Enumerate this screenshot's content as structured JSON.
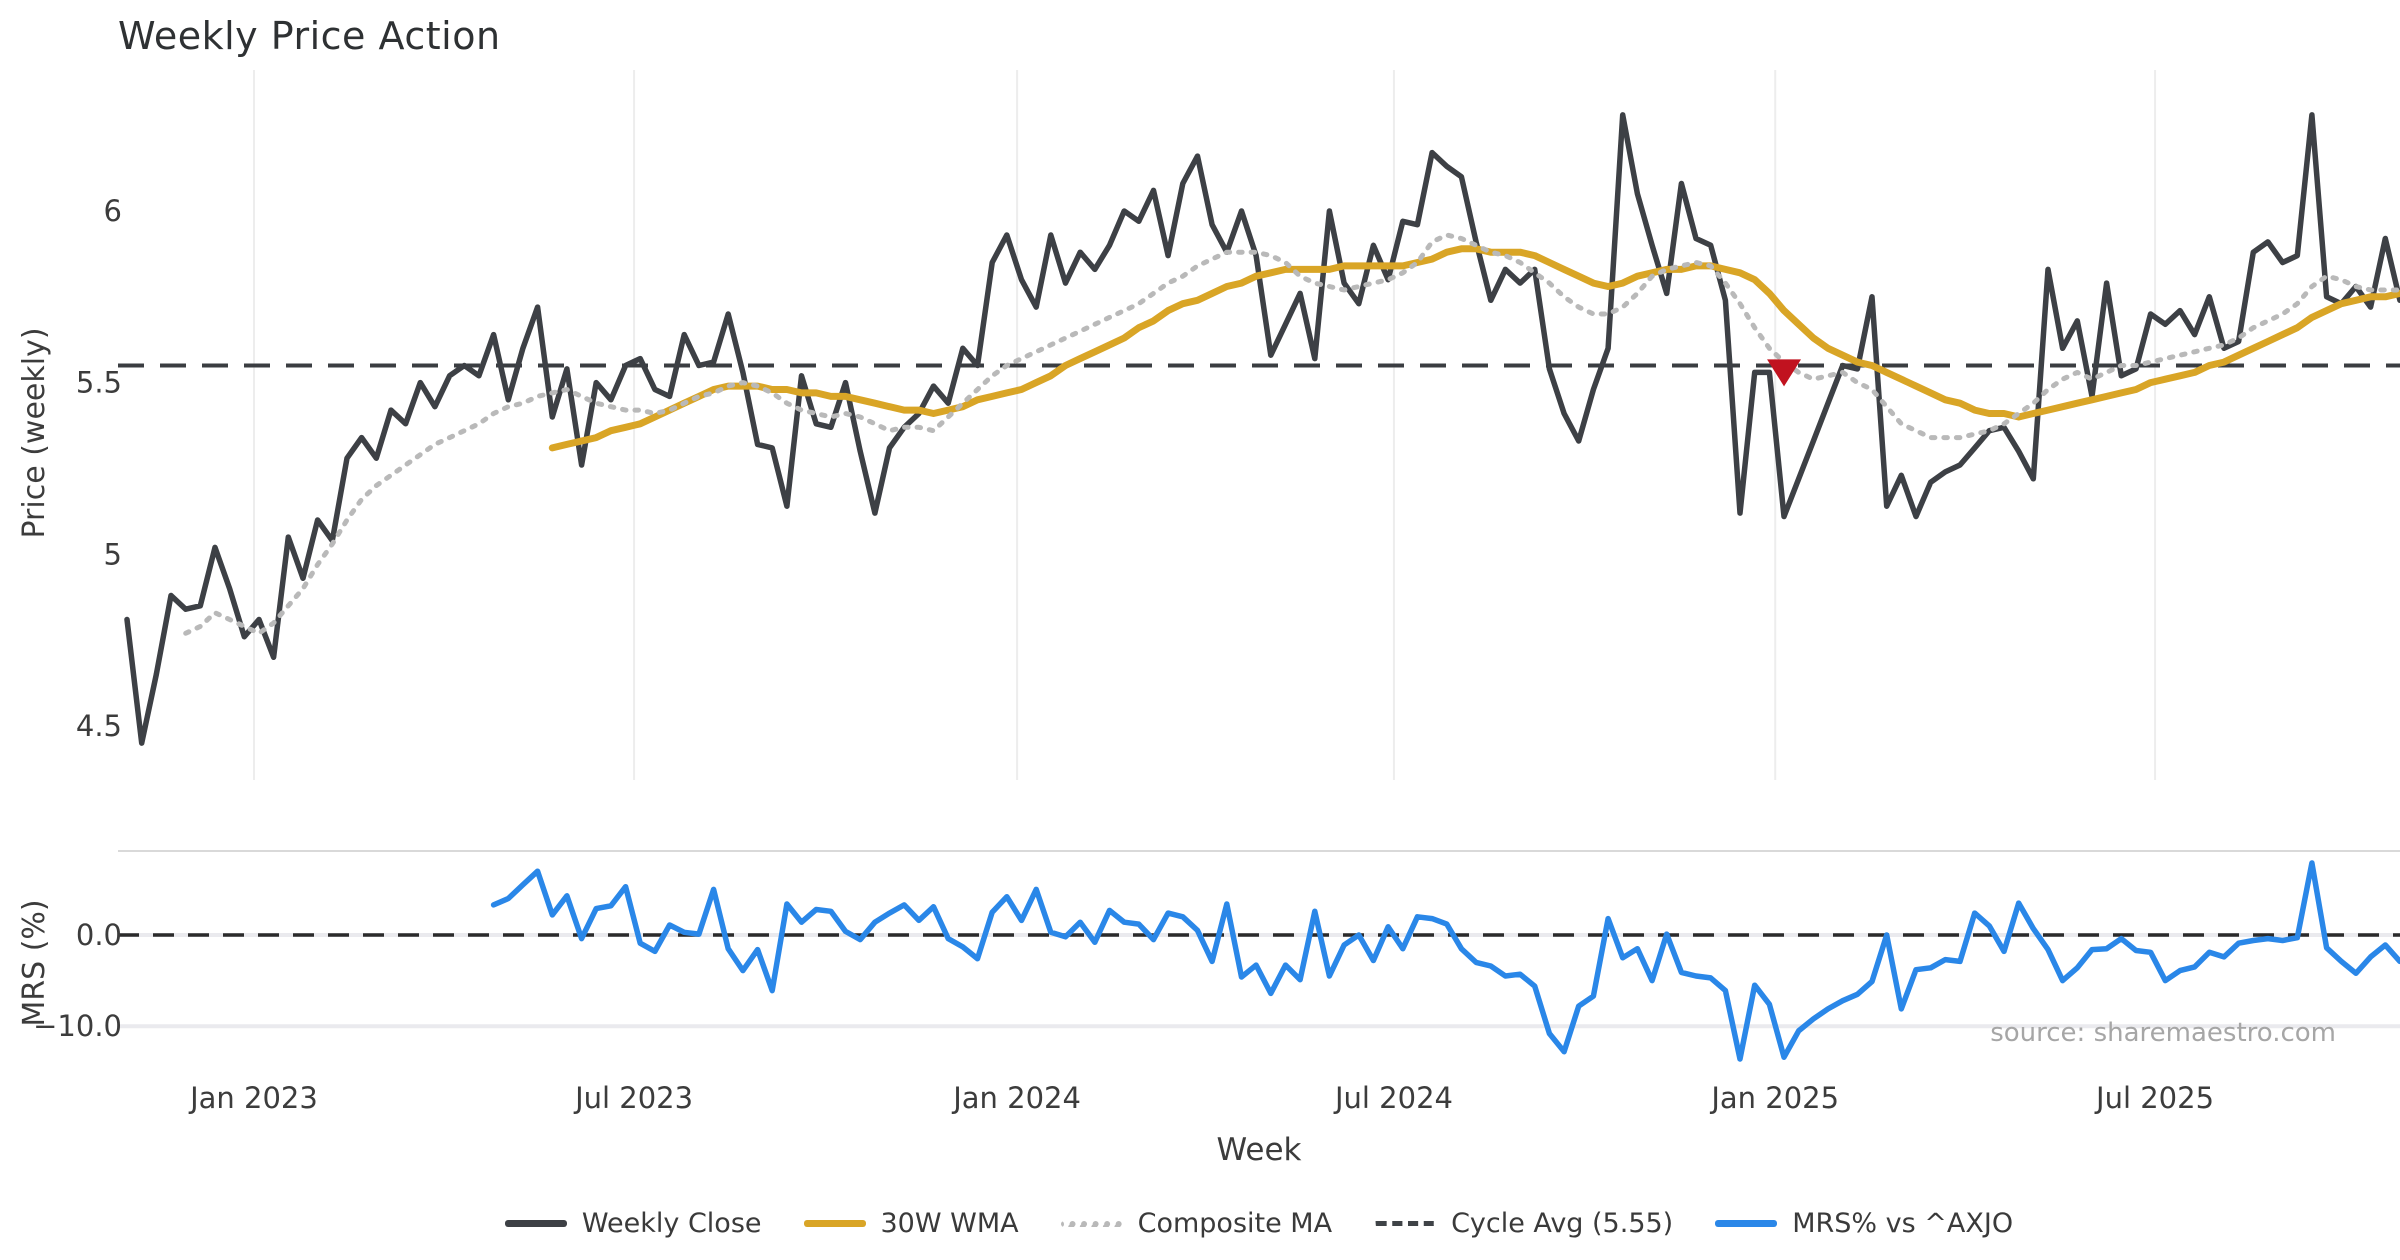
{
  "title": "Weekly Price Action",
  "source_text": "source: sharemaestro.com",
  "legend": {
    "items": [
      {
        "label": "Weekly Close",
        "color": "#3d4045",
        "style": "solid"
      },
      {
        "label": "30W WMA",
        "color": "#d9a526",
        "style": "solid"
      },
      {
        "label": "Composite MA",
        "color": "#b9b9b9",
        "style": "dotted"
      },
      {
        "label": "Cycle Avg (5.55)",
        "color": "#3f4347",
        "style": "dashed"
      },
      {
        "label": "MRS% vs ^AXJO",
        "color": "#2a87e8",
        "style": "solid"
      }
    ]
  },
  "chart_data": {
    "type": "line",
    "title": "Weekly Price Action",
    "xlabel": "Week",
    "grid": "vertical-main-panel-only",
    "legend_position": "bottom-center",
    "x_ticks": [
      {
        "label": "Jan 2023",
        "week": 8.66
      },
      {
        "label": "Jul 2023",
        "week": 34.58
      },
      {
        "label": "Jan 2024",
        "week": 60.7
      },
      {
        "label": "Jul 2024",
        "week": 86.4
      },
      {
        "label": "Jan 2025",
        "week": 112.4
      },
      {
        "label": "Jul 2025",
        "week": 138.3
      }
    ],
    "panels": [
      {
        "name": "price",
        "ylabel": "Price (weekly)",
        "ylim": [
          4.35,
          6.41
        ],
        "yticks": [
          {
            "label": "4.5",
            "value": 4.5
          },
          {
            "label": "5",
            "value": 5
          },
          {
            "label": "5.5",
            "value": 5.5
          },
          {
            "label": "6",
            "value": 6
          }
        ],
        "cycle_avg_line": {
          "value": 5.55,
          "color": "#3a3d41",
          "style": "dashed"
        }
      },
      {
        "name": "mrs",
        "ylabel": "MRS (%)",
        "ylim": [
          -14.5,
          9.2
        ],
        "yticks": [
          {
            "label": "0.0",
            "value": 0
          },
          {
            "label": "−10.0",
            "value": -10
          }
        ],
        "zero_line": {
          "value": 0,
          "color": "#2b2b2b",
          "style": "dashed"
        },
        "light_gridlines": [
          0,
          -10
        ]
      }
    ],
    "marker": {
      "shape": "triangle-down",
      "week": 113,
      "price": 5.53,
      "color": "#c1121f",
      "meaning": "signal marker below cycle avg"
    },
    "series": [
      {
        "name": "Weekly Close",
        "panel": 0,
        "color": "#3d4045",
        "style": "solid",
        "width": 5.5,
        "start_week": 0,
        "values": [
          4.81,
          4.45,
          4.65,
          4.88,
          4.84,
          4.85,
          5.02,
          4.9,
          4.76,
          4.81,
          4.7,
          5.05,
          4.93,
          5.1,
          5.04,
          5.28,
          5.34,
          5.28,
          5.42,
          5.38,
          5.5,
          5.43,
          5.52,
          5.55,
          5.52,
          5.64,
          5.45,
          5.6,
          5.72,
          5.4,
          5.54,
          5.26,
          5.5,
          5.45,
          5.55,
          5.57,
          5.48,
          5.46,
          5.64,
          5.55,
          5.56,
          5.7,
          5.53,
          5.32,
          5.31,
          5.14,
          5.52,
          5.38,
          5.37,
          5.5,
          5.3,
          5.12,
          5.31,
          5.37,
          5.41,
          5.49,
          5.44,
          5.6,
          5.55,
          5.85,
          5.93,
          5.8,
          5.72,
          5.93,
          5.79,
          5.88,
          5.83,
          5.9,
          6.0,
          5.97,
          6.06,
          5.87,
          6.08,
          6.16,
          5.96,
          5.88,
          6.0,
          5.87,
          5.58,
          5.67,
          5.76,
          5.57,
          6.0,
          5.79,
          5.73,
          5.9,
          5.8,
          5.97,
          5.96,
          6.17,
          6.13,
          6.1,
          5.91,
          5.74,
          5.83,
          5.79,
          5.83,
          5.54,
          5.41,
          5.33,
          5.48,
          5.6,
          6.28,
          6.05,
          5.9,
          5.76,
          6.08,
          5.92,
          5.9,
          5.74,
          5.12,
          5.53,
          5.53,
          5.11,
          5.22,
          5.33,
          5.44,
          5.55,
          5.54,
          5.75,
          5.14,
          5.23,
          5.11,
          5.21,
          5.24,
          5.26,
          5.31,
          5.36,
          5.37,
          5.3,
          5.22,
          5.83,
          5.6,
          5.68,
          5.46,
          5.79,
          5.52,
          5.54,
          5.7,
          5.67,
          5.71,
          5.64,
          5.75,
          5.6,
          5.62,
          5.88,
          5.91,
          5.85,
          5.87,
          6.28,
          5.75,
          5.73,
          5.78,
          5.72,
          5.92,
          5.74
        ]
      },
      {
        "name": "30W WMA",
        "panel": 0,
        "color": "#d9a526",
        "style": "solid",
        "width": 7,
        "start_week": 29,
        "values": [
          5.31,
          5.32,
          5.33,
          5.34,
          5.36,
          5.37,
          5.38,
          5.4,
          5.42,
          5.44,
          5.46,
          5.48,
          5.49,
          5.49,
          5.49,
          5.48,
          5.48,
          5.47,
          5.47,
          5.46,
          5.46,
          5.45,
          5.44,
          5.43,
          5.42,
          5.42,
          5.41,
          5.42,
          5.43,
          5.45,
          5.46,
          5.47,
          5.48,
          5.5,
          5.52,
          5.55,
          5.57,
          5.59,
          5.61,
          5.63,
          5.66,
          5.68,
          5.71,
          5.73,
          5.74,
          5.76,
          5.78,
          5.79,
          5.81,
          5.82,
          5.83,
          5.83,
          5.83,
          5.83,
          5.84,
          5.84,
          5.84,
          5.84,
          5.84,
          5.85,
          5.86,
          5.88,
          5.89,
          5.89,
          5.88,
          5.88,
          5.88,
          5.87,
          5.85,
          5.83,
          5.81,
          5.79,
          5.78,
          5.79,
          5.81,
          5.82,
          5.83,
          5.83,
          5.84,
          5.84,
          5.83,
          5.82,
          5.8,
          5.76,
          5.71,
          5.67,
          5.63,
          5.6,
          5.58,
          5.56,
          5.55,
          5.53,
          5.51,
          5.49,
          5.47,
          5.45,
          5.44,
          5.42,
          5.41,
          5.41,
          5.4,
          5.41,
          5.42,
          5.43,
          5.44,
          5.45,
          5.46,
          5.47,
          5.48,
          5.5,
          5.51,
          5.52,
          5.53,
          5.55,
          5.56,
          5.58,
          5.6,
          5.62,
          5.64,
          5.66,
          5.69,
          5.71,
          5.73,
          5.74,
          5.75,
          5.75,
          5.76
        ]
      },
      {
        "name": "Composite MA",
        "panel": 0,
        "color": "#b9b9b9",
        "style": "dotted",
        "width": 5,
        "start_week": 4,
        "values": [
          4.77,
          4.79,
          4.83,
          4.81,
          4.79,
          4.77,
          4.8,
          4.85,
          4.9,
          4.97,
          5.03,
          5.1,
          5.16,
          5.2,
          5.23,
          5.26,
          5.29,
          5.32,
          5.34,
          5.36,
          5.38,
          5.41,
          5.43,
          5.44,
          5.46,
          5.47,
          5.48,
          5.46,
          5.44,
          5.43,
          5.42,
          5.42,
          5.41,
          5.42,
          5.44,
          5.46,
          5.47,
          5.49,
          5.5,
          5.49,
          5.47,
          5.44,
          5.42,
          5.41,
          5.4,
          5.41,
          5.4,
          5.38,
          5.36,
          5.37,
          5.37,
          5.36,
          5.4,
          5.44,
          5.48,
          5.52,
          5.55,
          5.57,
          5.59,
          5.61,
          5.63,
          5.65,
          5.67,
          5.69,
          5.71,
          5.73,
          5.76,
          5.79,
          5.81,
          5.84,
          5.86,
          5.88,
          5.88,
          5.88,
          5.87,
          5.85,
          5.81,
          5.79,
          5.78,
          5.77,
          5.78,
          5.79,
          5.8,
          5.82,
          5.85,
          5.91,
          5.93,
          5.92,
          5.9,
          5.88,
          5.87,
          5.85,
          5.82,
          5.79,
          5.75,
          5.72,
          5.7,
          5.7,
          5.72,
          5.76,
          5.81,
          5.83,
          5.84,
          5.85,
          5.84,
          5.79,
          5.73,
          5.66,
          5.6,
          5.56,
          5.53,
          5.51,
          5.52,
          5.53,
          5.5,
          5.48,
          5.43,
          5.38,
          5.36,
          5.34,
          5.34,
          5.34,
          5.35,
          5.36,
          5.38,
          5.41,
          5.44,
          5.48,
          5.51,
          5.53,
          5.51,
          5.53,
          5.55,
          5.55,
          5.56,
          5.57,
          5.58,
          5.59,
          5.6,
          5.61,
          5.63,
          5.66,
          5.68,
          5.7,
          5.73,
          5.78,
          5.81,
          5.8,
          5.78,
          5.77,
          5.77,
          5.77
        ]
      },
      {
        "name": "MRS% vs ^AXJO",
        "panel": 1,
        "color": "#2a87e8",
        "style": "solid",
        "width": 5.5,
        "start_week": 25,
        "values": [
          3.3,
          4.0,
          5.5,
          7.0,
          2.2,
          4.3,
          -0.4,
          2.9,
          3.2,
          5.3,
          -0.9,
          -1.8,
          1.1,
          0.3,
          0.1,
          5.0,
          -1.5,
          -3.9,
          -1.6,
          -6.1,
          3.4,
          1.4,
          2.8,
          2.6,
          0.4,
          -0.5,
          1.4,
          2.4,
          3.3,
          1.6,
          3.1,
          -0.4,
          -1.3,
          -2.6,
          2.5,
          4.2,
          1.6,
          5.0,
          0.3,
          -0.2,
          1.4,
          -0.8,
          2.7,
          1.4,
          1.2,
          -0.5,
          2.4,
          2.0,
          0.5,
          -2.9,
          3.4,
          -4.6,
          -3.3,
          -6.4,
          -3.3,
          -4.9,
          2.6,
          -4.5,
          -1.1,
          0.0,
          -2.8,
          0.9,
          -1.5,
          2.0,
          1.8,
          1.2,
          -1.5,
          -3.0,
          -3.4,
          -4.5,
          -4.3,
          -5.6,
          -10.8,
          -12.8,
          -7.8,
          -6.7,
          1.8,
          -2.5,
          -1.5,
          -5.0,
          0.1,
          -4.1,
          -4.5,
          -4.7,
          -6.1,
          -13.6,
          -5.5,
          -7.6,
          -13.4,
          -10.5,
          -9.2,
          -8.1,
          -7.2,
          -6.5,
          -5.1,
          0.0,
          -8.1,
          -3.8,
          -3.6,
          -2.7,
          -2.9,
          2.4,
          1.0,
          -1.8,
          3.5,
          0.7,
          -1.6,
          -5.0,
          -3.6,
          -1.6,
          -1.5,
          -0.4,
          -1.7,
          -1.9,
          -5.0,
          -3.9,
          -3.5,
          -1.9,
          -2.4,
          -0.9,
          -0.6,
          -0.4,
          -0.6,
          -0.3,
          7.9,
          -1.4,
          -2.9,
          -4.2,
          -2.4,
          -1.1,
          -2.9
        ]
      }
    ]
  }
}
